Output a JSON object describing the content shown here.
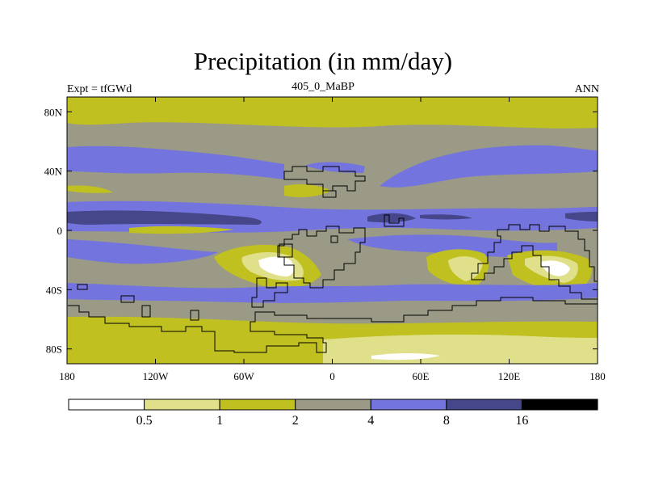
{
  "title": "Precipitation (in mm/day)",
  "left_label": "Expt = tfGWd",
  "center_label": "405_0_MaBP",
  "right_label": "ANN",
  "lat_ticks": [
    {
      "value": 80,
      "label": "80N"
    },
    {
      "value": 40,
      "label": "40N"
    },
    {
      "value": 0,
      "label": "0"
    },
    {
      "value": -40,
      "label": "40S"
    },
    {
      "value": -80,
      "label": "80S"
    }
  ],
  "lon_ticks": [
    {
      "value": -180,
      "label": "180"
    },
    {
      "value": -120,
      "label": "120W"
    },
    {
      "value": -60,
      "label": "60W"
    },
    {
      "value": 0,
      "label": "0"
    },
    {
      "value": 60,
      "label": "60E"
    },
    {
      "value": 120,
      "label": "120E"
    },
    {
      "value": 180,
      "label": "180"
    }
  ],
  "colorbar": {
    "colors": [
      "#ffffff",
      "#e0e08a",
      "#c0c020",
      "#9a9a86",
      "#7474de",
      "#46468a",
      "#000000"
    ],
    "labels": [
      "0.5",
      "1",
      "2",
      "4",
      "8",
      "16"
    ]
  },
  "chart_data": {
    "type": "contour-map",
    "variable": "Precipitation",
    "units": "mm/day",
    "levels": [
      0.5,
      1,
      2,
      4,
      8,
      16
    ],
    "lon_range": [
      -180,
      180
    ],
    "lat_range": [
      -90,
      90
    ]
  }
}
